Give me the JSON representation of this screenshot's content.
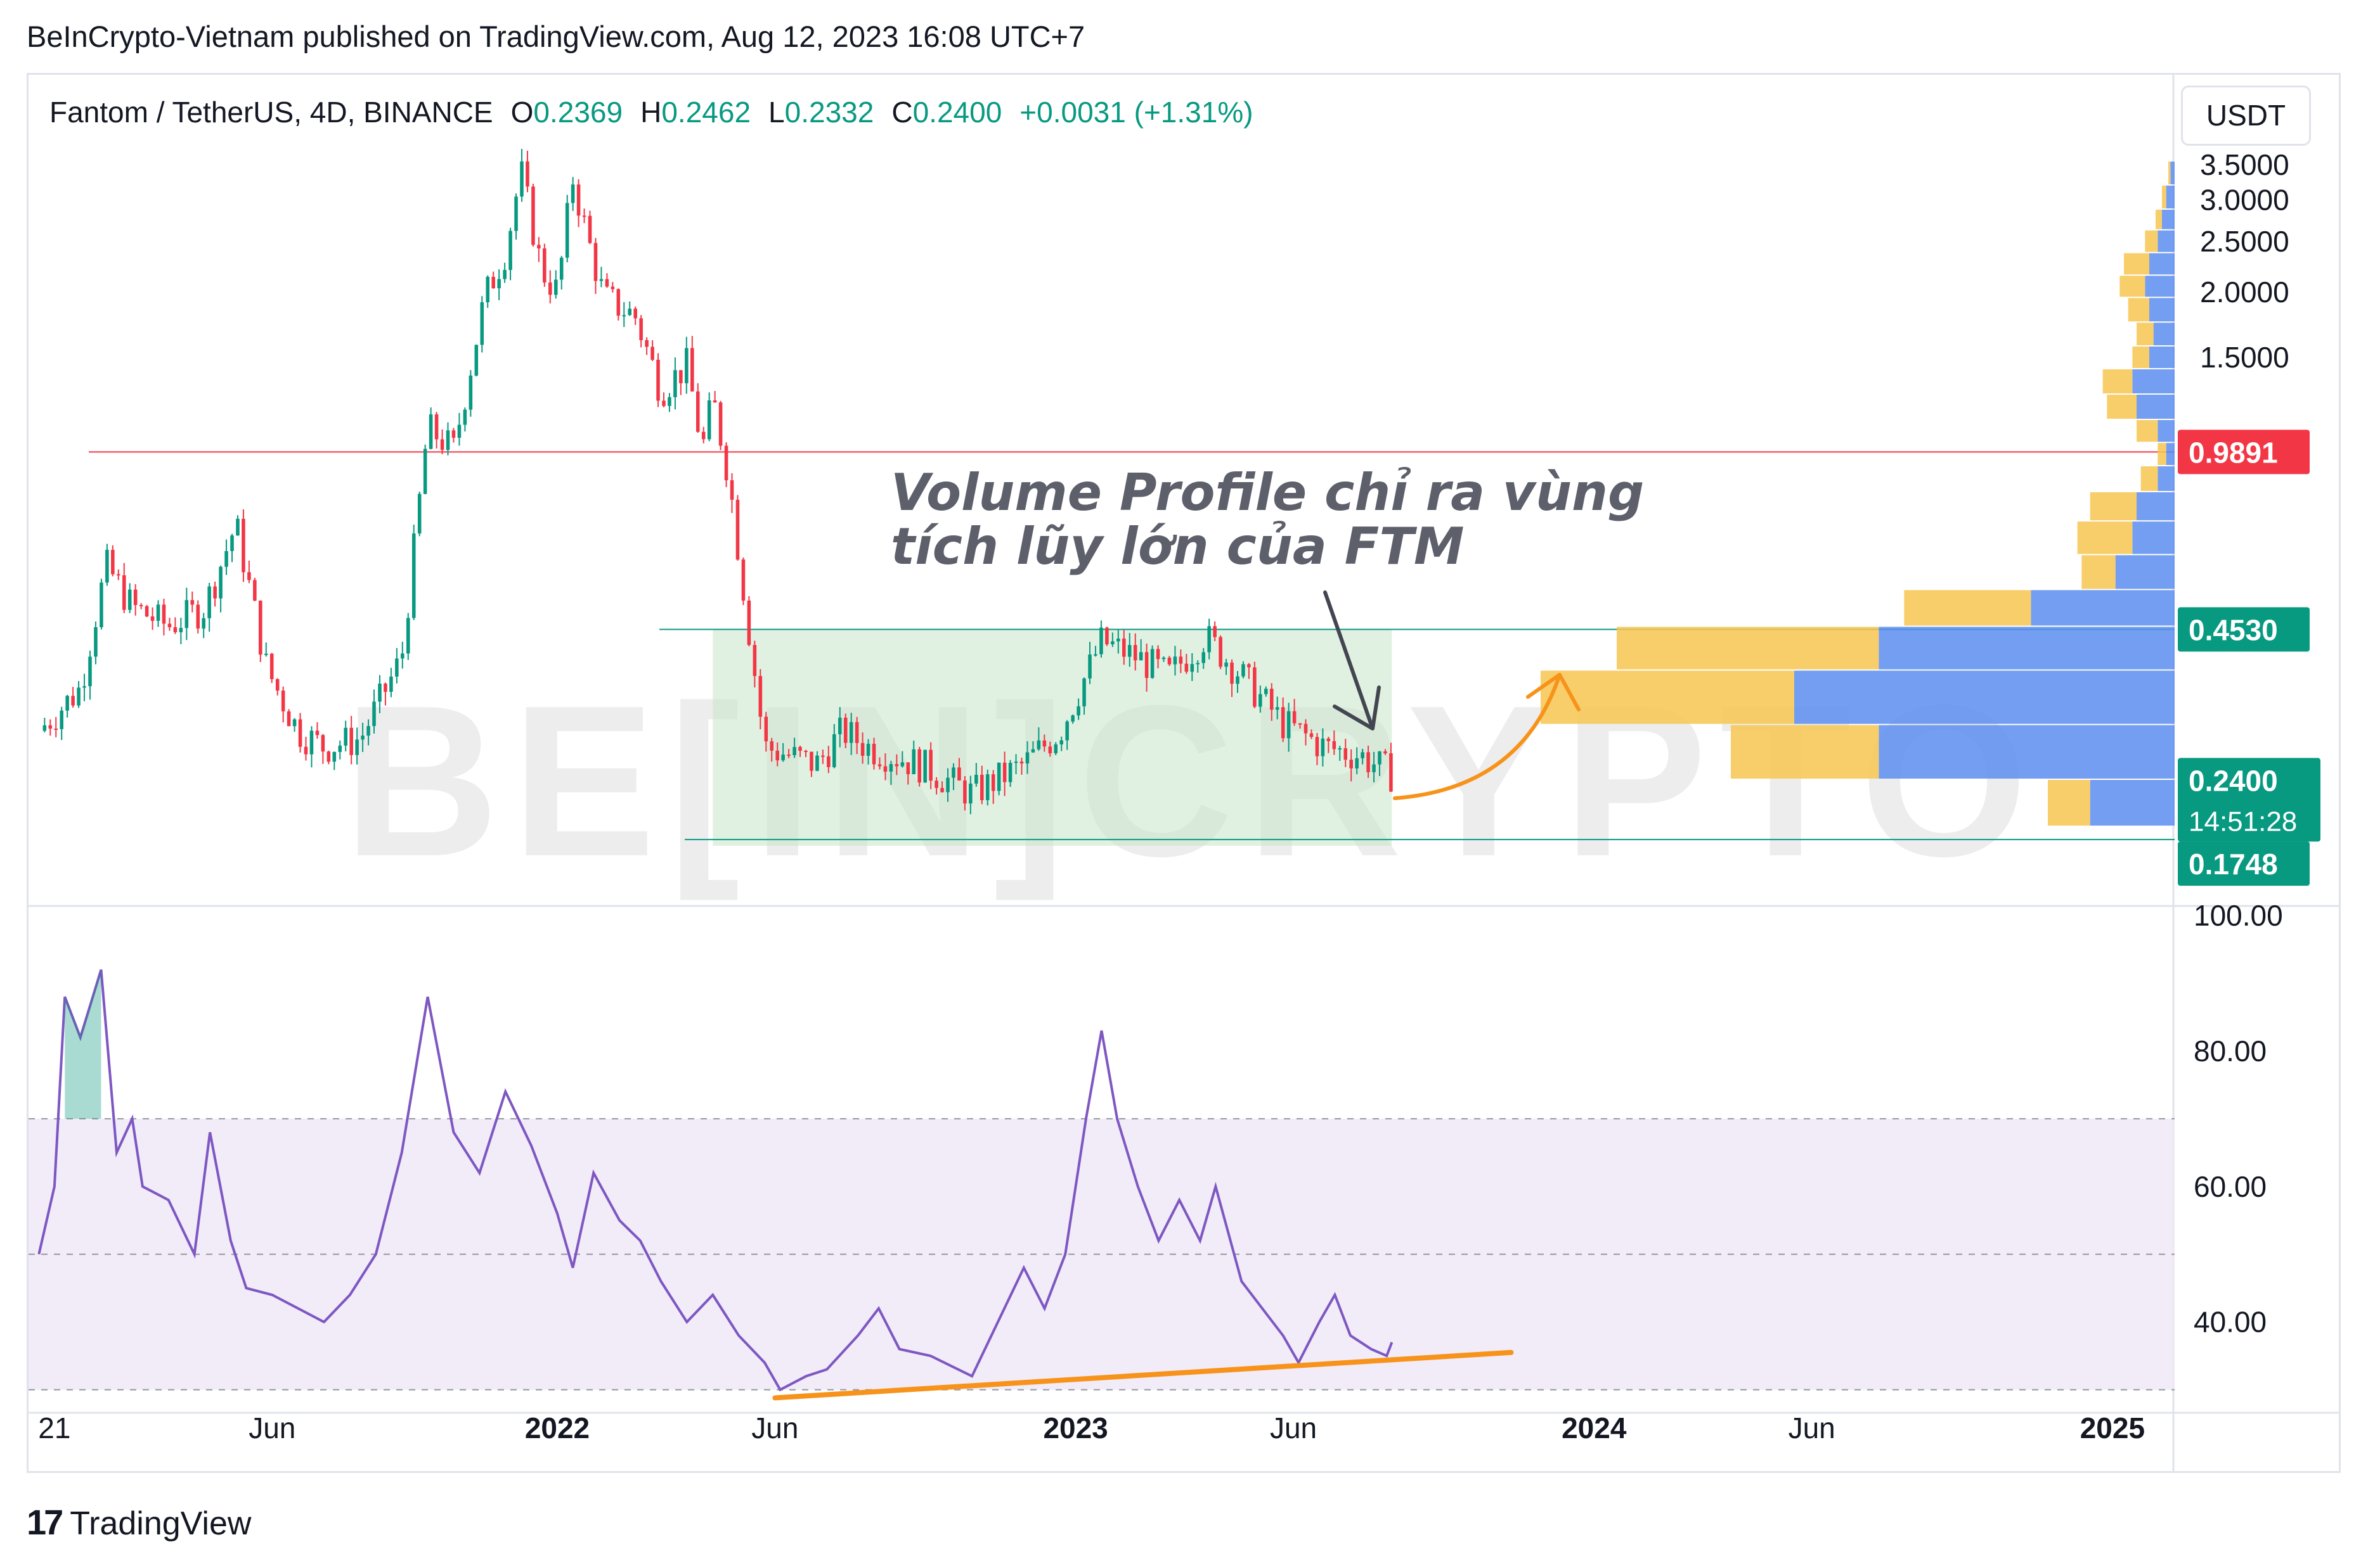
{
  "header": {
    "publisher_line": "BeInCrypto-Vietnam published on TradingView.com, Aug 12, 2023 16:08 UTC+7"
  },
  "legend": {
    "symbol": "Fantom / TetherUS, 4D, BINANCE",
    "open_label": "O",
    "open": "0.2369",
    "high_label": "H",
    "high": "0.2462",
    "low_label": "L",
    "low": "0.2332",
    "close_label": "C",
    "close": "0.2400",
    "change": "+0.0031 (+1.31%)"
  },
  "currency_button": "USDT",
  "footer": {
    "logo_mark": "17",
    "logo_text": "TradingView"
  },
  "colors": {
    "up": "#089981",
    "down": "#f23645",
    "rsi": "#7e57c2",
    "rsi_band": "#ede7f6",
    "trend": "#f7931a",
    "resistance": "#f23645",
    "vp_up": "#5b8def",
    "vp_down": "#f7c651",
    "zone": "#c8e6c9"
  },
  "watermark": "BE[IN]CRYPTO",
  "chart_data": [
    {
      "type": "candlestick",
      "title": "",
      "price_axis": {
        "scale": "log",
        "ticks": [
          "3.5000",
          "3.0000",
          "2.5000",
          "2.0000",
          "1.5000"
        ],
        "tick_values": [
          3.5,
          3.0,
          2.5,
          2.0,
          1.5
        ],
        "ylim": [
          0.15,
          3.6
        ]
      },
      "price_labels": [
        {
          "text": "0.9891",
          "value": 0.9891,
          "color": "#f23645"
        },
        {
          "text": "0.4530",
          "value": 0.453,
          "color": "#089981"
        },
        {
          "text": "0.2400",
          "value": 0.24,
          "color": "#089981",
          "countdown": "14:51:28"
        },
        {
          "text": "0.1748",
          "value": 0.1748,
          "color": "#089981"
        }
      ],
      "time_axis": {
        "ticks": [
          "21",
          "Jun",
          "2022",
          "Jun",
          "2023",
          "Jun",
          "2024",
          "Jun",
          "2025"
        ],
        "tick_years": [
          2021.03,
          2021.45,
          2022.0,
          2022.42,
          2023.0,
          2023.42,
          2024.0,
          2024.42,
          2025.0
        ]
      },
      "price_path": [
        [
          2021.0,
          0.29
        ],
        [
          2021.08,
          0.35
        ],
        [
          2021.13,
          0.6
        ],
        [
          2021.18,
          0.5
        ],
        [
          2021.25,
          0.46
        ],
        [
          2021.32,
          0.5
        ],
        [
          2021.38,
          0.72
        ],
        [
          2021.44,
          0.38
        ],
        [
          2021.5,
          0.29
        ],
        [
          2021.55,
          0.27
        ],
        [
          2021.62,
          0.28
        ],
        [
          2021.7,
          0.4
        ],
        [
          2021.75,
          1.1
        ],
        [
          2021.8,
          1.0
        ],
        [
          2021.86,
          1.95
        ],
        [
          2021.9,
          2.4
        ],
        [
          2021.93,
          3.4
        ],
        [
          2021.97,
          2.2
        ],
        [
          2022.0,
          2.0
        ],
        [
          2022.03,
          3.3
        ],
        [
          2022.06,
          2.5
        ],
        [
          2022.09,
          1.95
        ],
        [
          2022.15,
          1.8
        ],
        [
          2022.2,
          1.3
        ],
        [
          2022.25,
          1.45
        ],
        [
          2022.28,
          1.0
        ],
        [
          2022.3,
          1.25
        ],
        [
          2022.33,
          0.9
        ],
        [
          2022.37,
          0.45
        ],
        [
          2022.4,
          0.27
        ],
        [
          2022.45,
          0.26
        ],
        [
          2022.5,
          0.25
        ],
        [
          2022.55,
          0.29
        ],
        [
          2022.6,
          0.27
        ],
        [
          2022.7,
          0.25
        ],
        [
          2022.8,
          0.22
        ],
        [
          2022.9,
          0.25
        ],
        [
          2022.97,
          0.29
        ],
        [
          2023.05,
          0.43
        ],
        [
          2023.12,
          0.4
        ],
        [
          2023.18,
          0.37
        ],
        [
          2023.25,
          0.44
        ],
        [
          2023.32,
          0.37
        ],
        [
          2023.4,
          0.3
        ],
        [
          2023.48,
          0.27
        ],
        [
          2023.55,
          0.26
        ],
        [
          2023.61,
          0.24
        ]
      ],
      "resistance_line": {
        "value": 0.9891,
        "color": "#f23645"
      },
      "accumulation_zone": {
        "from": 2022.3,
        "to": 2023.61,
        "upper": 0.453,
        "lower": 0.1748
      },
      "volume_profile": [
        {
          "price": 3.4,
          "up": 0.01,
          "down": 0.005
        },
        {
          "price": 3.0,
          "up": 0.02,
          "down": 0.01
        },
        {
          "price": 2.75,
          "up": 0.03,
          "down": 0.015
        },
        {
          "price": 2.5,
          "up": 0.04,
          "down": 0.03
        },
        {
          "price": 2.25,
          "up": 0.06,
          "down": 0.06
        },
        {
          "price": 2.05,
          "up": 0.07,
          "down": 0.06
        },
        {
          "price": 1.85,
          "up": 0.06,
          "down": 0.05
        },
        {
          "price": 1.65,
          "up": 0.05,
          "down": 0.04
        },
        {
          "price": 1.5,
          "up": 0.06,
          "down": 0.04
        },
        {
          "price": 1.35,
          "up": 0.1,
          "down": 0.07
        },
        {
          "price": 1.2,
          "up": 0.09,
          "down": 0.07
        },
        {
          "price": 1.08,
          "up": 0.04,
          "down": 0.05
        },
        {
          "price": 0.98,
          "up": 0.02,
          "down": 0.02
        },
        {
          "price": 0.88,
          "up": 0.04,
          "down": 0.04
        },
        {
          "price": 0.78,
          "up": 0.09,
          "down": 0.11
        },
        {
          "price": 0.68,
          "up": 0.1,
          "down": 0.13
        },
        {
          "price": 0.58,
          "up": 0.14,
          "down": 0.08
        },
        {
          "price": 0.5,
          "up": 0.34,
          "down": 0.3
        },
        {
          "price": 0.42,
          "up": 0.7,
          "down": 0.62
        },
        {
          "price": 0.34,
          "up": 0.9,
          "down": 0.6
        },
        {
          "price": 0.26,
          "up": 0.7,
          "down": 0.35
        },
        {
          "price": 0.21,
          "up": 0.2,
          "down": 0.1
        }
      ],
      "annotation": {
        "text_line1": "Volume Profile chỉ ra vùng",
        "text_line2": "tích lũy lớn của FTM"
      }
    },
    {
      "type": "line",
      "title": "",
      "ylim": [
        28,
        100
      ],
      "y_ticks": [
        "100.00",
        "80.00",
        "60.00",
        "40.00"
      ],
      "y_tick_values": [
        100,
        80,
        60,
        40
      ],
      "band": {
        "upper": 70,
        "lower": 30,
        "middle": 50
      },
      "rsi_path": [
        [
          2021.0,
          50
        ],
        [
          2021.03,
          60
        ],
        [
          2021.05,
          88
        ],
        [
          2021.08,
          82
        ],
        [
          2021.12,
          92
        ],
        [
          2021.15,
          65
        ],
        [
          2021.18,
          70
        ],
        [
          2021.2,
          60
        ],
        [
          2021.25,
          58
        ],
        [
          2021.3,
          50
        ],
        [
          2021.33,
          68
        ],
        [
          2021.37,
          52
        ],
        [
          2021.4,
          45
        ],
        [
          2021.45,
          44
        ],
        [
          2021.5,
          42
        ],
        [
          2021.55,
          40
        ],
        [
          2021.6,
          44
        ],
        [
          2021.65,
          50
        ],
        [
          2021.7,
          65
        ],
        [
          2021.75,
          88
        ],
        [
          2021.8,
          68
        ],
        [
          2021.85,
          62
        ],
        [
          2021.9,
          74
        ],
        [
          2021.95,
          66
        ],
        [
          2022.0,
          56
        ],
        [
          2022.03,
          48
        ],
        [
          2022.07,
          62
        ],
        [
          2022.12,
          55
        ],
        [
          2022.16,
          52
        ],
        [
          2022.2,
          46
        ],
        [
          2022.25,
          40
        ],
        [
          2022.3,
          44
        ],
        [
          2022.35,
          38
        ],
        [
          2022.4,
          34
        ],
        [
          2022.43,
          30
        ],
        [
          2022.48,
          32
        ],
        [
          2022.52,
          33
        ],
        [
          2022.58,
          38
        ],
        [
          2022.62,
          42
        ],
        [
          2022.66,
          36
        ],
        [
          2022.72,
          35
        ],
        [
          2022.8,
          32
        ],
        [
          2022.85,
          40
        ],
        [
          2022.9,
          48
        ],
        [
          2022.94,
          42
        ],
        [
          2022.98,
          50
        ],
        [
          2023.02,
          70
        ],
        [
          2023.05,
          83
        ],
        [
          2023.08,
          70
        ],
        [
          2023.12,
          60
        ],
        [
          2023.16,
          52
        ],
        [
          2023.2,
          58
        ],
        [
          2023.24,
          52
        ],
        [
          2023.27,
          60
        ],
        [
          2023.32,
          46
        ],
        [
          2023.36,
          42
        ],
        [
          2023.4,
          38
        ],
        [
          2023.43,
          34
        ],
        [
          2023.47,
          40
        ],
        [
          2023.5,
          44
        ],
        [
          2023.53,
          38
        ],
        [
          2023.57,
          36
        ],
        [
          2023.6,
          35
        ],
        [
          2023.61,
          37
        ]
      ],
      "trendline": {
        "from": [
          2022.42,
          28.8
        ],
        "to": [
          2023.84,
          35.5
        ],
        "color": "#f7931a"
      }
    }
  ]
}
